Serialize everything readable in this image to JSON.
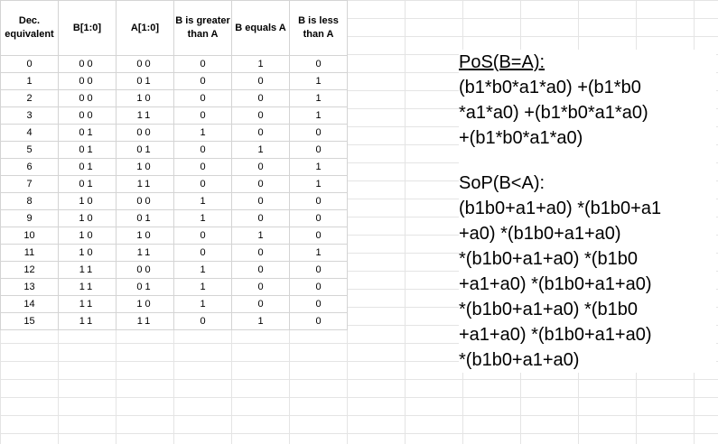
{
  "table": {
    "headers": [
      "Dec. equivalent",
      "B[1:0]",
      "A[1:0]",
      "B is greater than A",
      "B equals A",
      "B is less than A"
    ],
    "rows": [
      [
        "0",
        "00",
        "00",
        "0",
        "1",
        "0"
      ],
      [
        "1",
        "00",
        "01",
        "0",
        "0",
        "1"
      ],
      [
        "2",
        "00",
        "10",
        "0",
        "0",
        "1"
      ],
      [
        "3",
        "00",
        "11",
        "0",
        "0",
        "1"
      ],
      [
        "4",
        "01",
        "00",
        "1",
        "0",
        "0"
      ],
      [
        "5",
        "01",
        "01",
        "0",
        "1",
        "0"
      ],
      [
        "6",
        "01",
        "10",
        "0",
        "0",
        "1"
      ],
      [
        "7",
        "01",
        "11",
        "0",
        "0",
        "1"
      ],
      [
        "8",
        "10",
        "00",
        "1",
        "0",
        "0"
      ],
      [
        "9",
        "10",
        "01",
        "1",
        "0",
        "0"
      ],
      [
        "10",
        "10",
        "10",
        "0",
        "1",
        "0"
      ],
      [
        "11",
        "10",
        "11",
        "0",
        "0",
        "1"
      ],
      [
        "12",
        "11",
        "00",
        "1",
        "0",
        "0"
      ],
      [
        "13",
        "11",
        "01",
        "1",
        "0",
        "0"
      ],
      [
        "14",
        "11",
        "10",
        "1",
        "0",
        "0"
      ],
      [
        "15",
        "11",
        "11",
        "0",
        "1",
        "0"
      ]
    ]
  },
  "pos": {
    "title": "PoS(B=A):",
    "lines": [
      "(b1*b0*a1*a0) +(b1*b0",
      "*a1*a0) +(b1*b0*a1*a0)",
      "+(b1*b0*a1*a0)"
    ]
  },
  "sop": {
    "title": "SoP(B<A):",
    "lines": [
      "(b1b0+a1+a0) *(b1b0+a1",
      "+a0) *(b1b0+a1+a0)",
      "*(b1b0+a1+a0) *(b1b0",
      "+a1+a0) *(b1b0+a1+a0)",
      "*(b1b0+a1+a0) *(b1b0",
      "+a1+a0) *(b1b0+a1+a0)",
      "*(b1b0+a1+a0)"
    ]
  }
}
